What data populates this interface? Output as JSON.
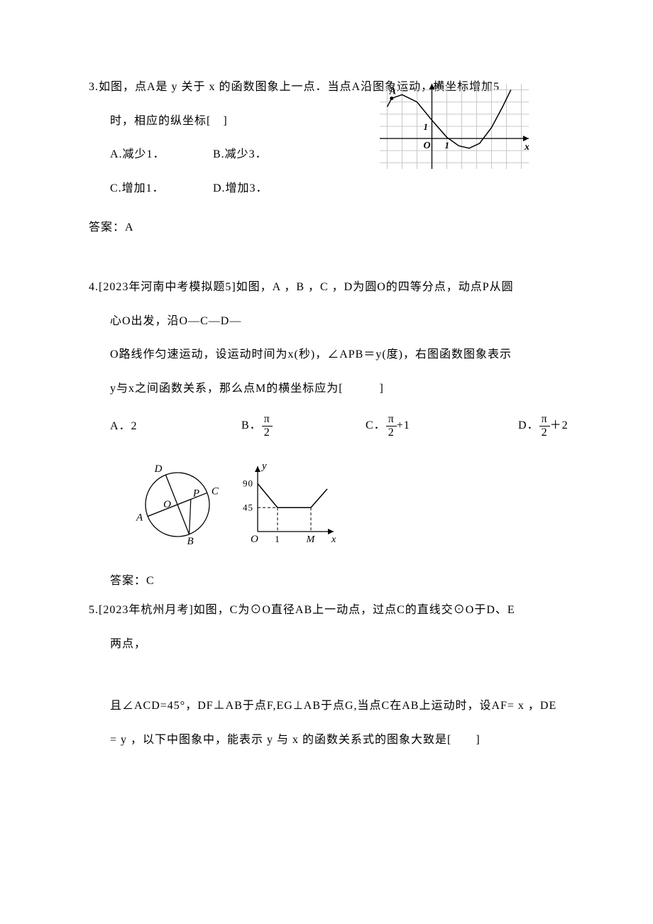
{
  "q3": {
    "stem_line1": "3.如图，点A是 y 关于 x 的函数图象上一点．当点A沿图象运动，横坐标增加5",
    "stem_line2": "时，相应的纵坐标[　]",
    "optA": "A.减少1．",
    "optB": "B.减少3．",
    "optC": "C.增加1．",
    "optD": "D.增加3．",
    "answer": "答案：A",
    "graph": {
      "x_ticks": [
        -3,
        -2,
        -1,
        0,
        1,
        2,
        3,
        4,
        5,
        6
      ],
      "y_ticks": [
        -2,
        -1,
        0,
        1,
        2,
        3,
        4
      ],
      "grid_color": "#c8c8c8",
      "axis_color": "#000000",
      "curve_color": "#000000",
      "label_A": "A",
      "label_y": "y",
      "label_x": "x",
      "label_O": "O",
      "tick_label_x": "1",
      "tick_label_y": "1",
      "curve_points": [
        [
          -3,
          2.6
        ],
        [
          -2.7,
          3.3
        ],
        [
          -2,
          3.6
        ],
        [
          -1,
          3
        ],
        [
          0,
          1.5
        ],
        [
          1,
          0.1
        ],
        [
          1.8,
          -0.6
        ],
        [
          2.5,
          -0.8
        ],
        [
          3.2,
          -0.4
        ],
        [
          4,
          0.9
        ],
        [
          4.7,
          2.5
        ],
        [
          5.3,
          4
        ]
      ],
      "point_A": [
        -2.7,
        3.3
      ]
    }
  },
  "q4": {
    "stem_line1": "4.[2023年河南中考模拟题5]如图，A ，B ，C ，D为圆O的四等分点，动点P从圆",
    "stem_line2": "心O出发，沿O—C—D—",
    "stem_line3": "O路线作匀速运动，设运动时间为x(秒)，∠APB＝y(度)，右图函数图象表示",
    "stem_line4": "y与x之间函数关系，那么点M的横坐标应为[　　　]",
    "optA_prefix": "A．2",
    "optB_prefix": "B．",
    "optC_prefix": "C．",
    "optC_suffix": "+1",
    "optD_prefix": "D．",
    "optD_suffix": "＋2",
    "frac_num": "π",
    "frac_den": "2",
    "answer": "答案：C",
    "circle": {
      "labels": {
        "A": "A",
        "B": "B",
        "C": "C",
        "D": "D",
        "O": "O",
        "P": "P"
      },
      "stroke": "#000000"
    },
    "graph": {
      "y_vals": [
        "90",
        "45"
      ],
      "x_vals": [
        "1",
        "M",
        "x"
      ],
      "label_y": "y",
      "label_O": "O",
      "axis_color": "#000000",
      "dash": "4,3",
      "curve_points": [
        [
          0,
          90
        ],
        [
          28,
          45
        ],
        [
          75,
          45
        ],
        [
          98,
          80
        ]
      ],
      "M_x": 75
    }
  },
  "q5": {
    "stem_line1": "5.[2023年杭州月考]如图，C为⊙O直径AB上一动点，过点C的直线交⊙O于D、E",
    "stem_line2": "两点，",
    "stem_line3": "且∠ACD=45°，DF⊥AB于点F,EG⊥AB于点G,当点C在AB上运动时，设AF= x ，DE",
    "stem_line4": "= y ，以下中图象中，能表示 y 与 x 的函数关系式的图象大致是[　　]"
  }
}
